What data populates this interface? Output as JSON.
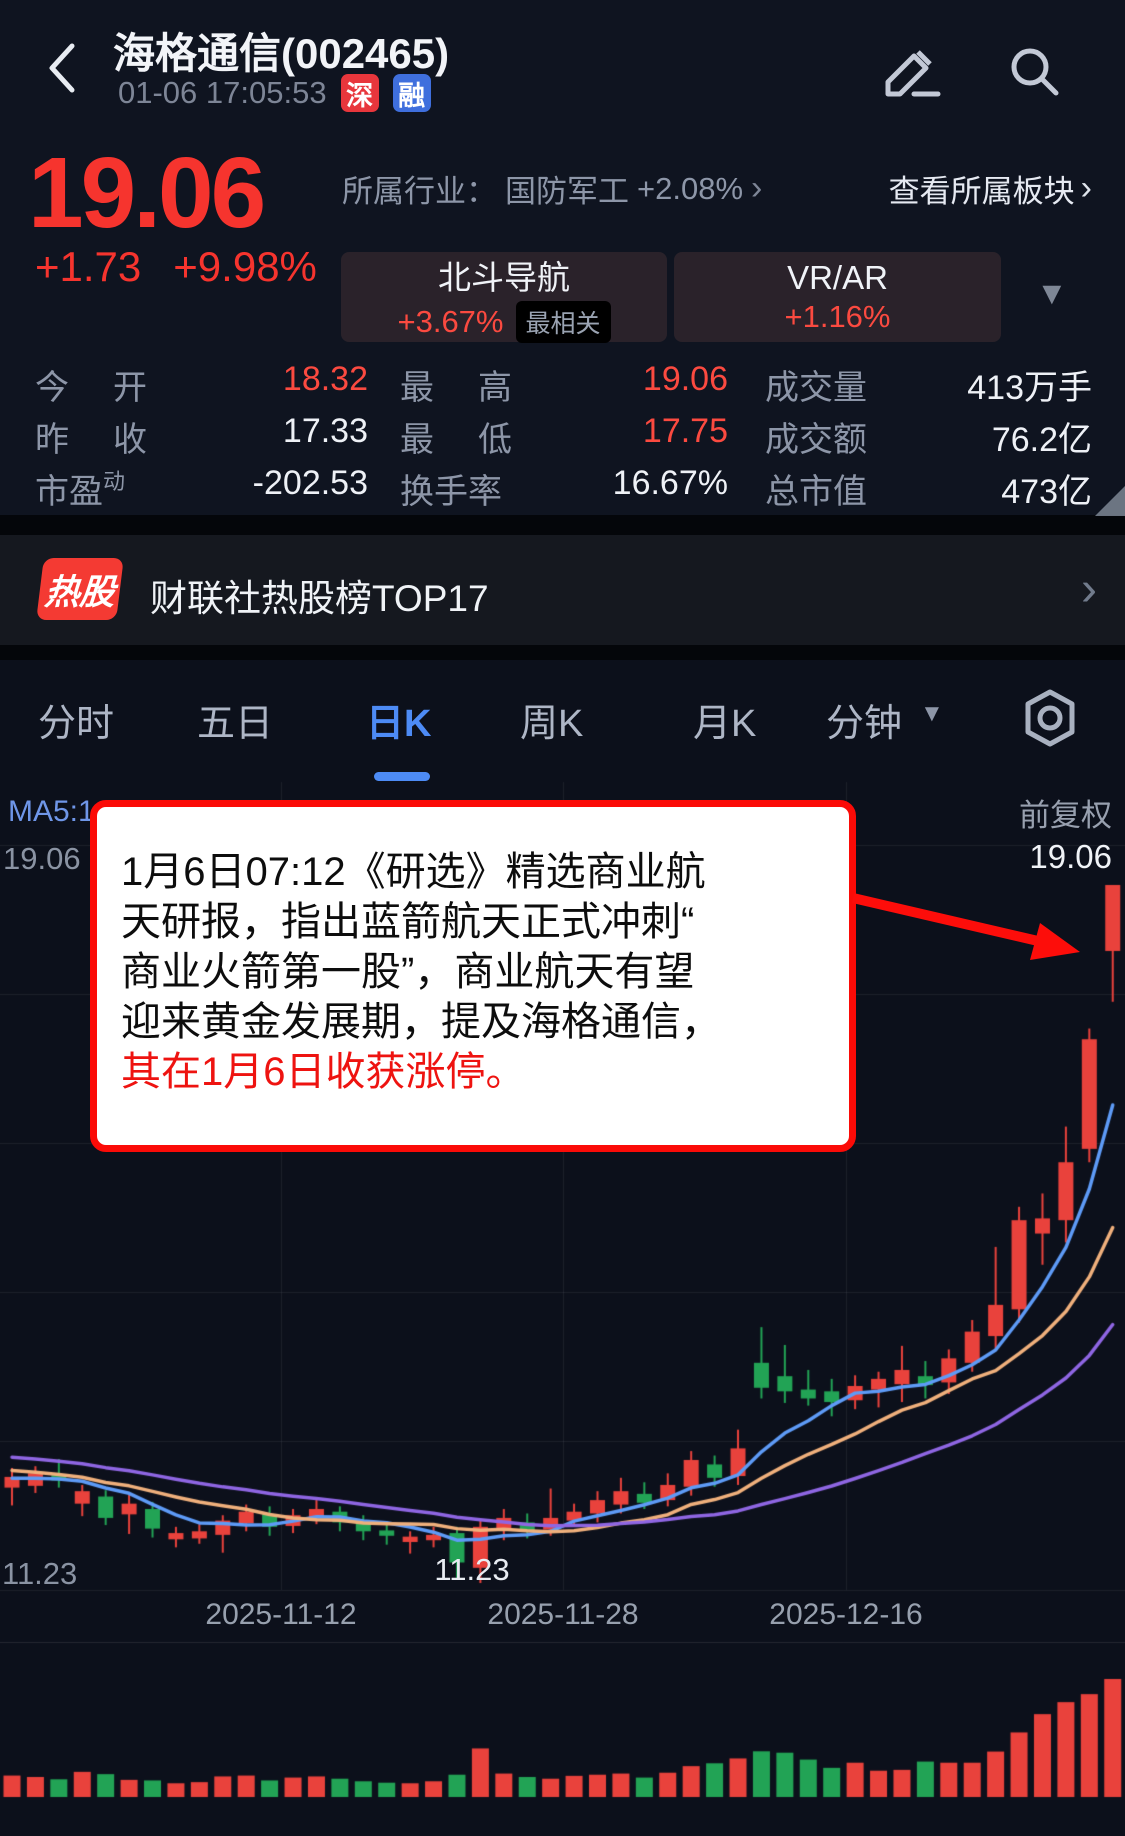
{
  "icons": {
    "chevron_right": "›",
    "dropdown_caret": "▼"
  },
  "header": {
    "title": "海格通信(002465)",
    "timestamp": "01-06 17:05:53",
    "market_badge": "深",
    "margin_badge": "融"
  },
  "quote": {
    "price": "19.06",
    "change": "+1.73",
    "change_pct": "+9.98%",
    "industry_prefix": "所属行业：",
    "industry_name": "国防军工",
    "industry_change": "+2.08%",
    "view_sector": "查看所属板块",
    "sectors": [
      {
        "name": "北斗导航",
        "change": "+3.67%",
        "tag": "最相关"
      },
      {
        "name": "VR/AR",
        "change": "+1.16%"
      }
    ]
  },
  "stats": {
    "cells": [
      {
        "label": "今开",
        "value": "18.32",
        "color": "red"
      },
      {
        "label": "最高",
        "value": "19.06",
        "color": "red"
      },
      {
        "label": "成交量",
        "value": "413万手",
        "color": "white"
      },
      {
        "label": "昨收",
        "value": "17.33",
        "color": "white"
      },
      {
        "label": "最低",
        "value": "17.75",
        "color": "red"
      },
      {
        "label": "成交额",
        "value": "76.2亿",
        "color": "white"
      },
      {
        "label": "市盈",
        "sup": "动",
        "value": "-202.53",
        "color": "white"
      },
      {
        "label": "换手率",
        "value": "16.67%",
        "color": "white"
      },
      {
        "label": "总市值",
        "value": "473亿",
        "color": "white"
      }
    ]
  },
  "hot_banner": {
    "badge": "热股",
    "text": "财联社热股榜TOP17"
  },
  "tabs": {
    "items": [
      "分时",
      "五日",
      "日K",
      "周K",
      "月K",
      "分钟"
    ],
    "active": "日K"
  },
  "chart_labels": {
    "adjust": "前复权",
    "ma_partial": "MA5:1",
    "left_max": "19.06",
    "right_max": "19.06",
    "left_min": "11.23",
    "low_marker": "11.23"
  },
  "annotation": {
    "lines": [
      "1月6日07:12《研选》精选商业航",
      "天研报，指出蓝箭航天正式冲刺“",
      "商业火箭第一股”，商业航天有望",
      "迎来黄金发展期，提及海格通信，"
    ],
    "highlight": "其在1月6日收获涨停。"
  },
  "chart_data": {
    "type": "candlestick",
    "title": "海格通信 日K 前复权",
    "x_axis_dates": [
      "2025-11-12",
      "2025-11-28",
      "2025-12-16"
    ],
    "ylim": [
      11.23,
      19.06
    ],
    "price_labels": {
      "max": "19.06",
      "min": "11.23"
    },
    "volume_unit": "万手",
    "last_volume": 413,
    "colors": {
      "up": "#e9423c",
      "down": "#22a355"
    },
    "ma_lines": [
      {
        "name": "MA5",
        "window": 5,
        "color": "#5e9bf7"
      },
      {
        "name": "MA10",
        "window": 10,
        "color": "#f0b07c"
      },
      {
        "name": "MA20",
        "window": 20,
        "color": "#8f66e3"
      }
    ],
    "ma_history_closes": [
      12.9,
      12.88,
      12.86,
      12.84,
      12.82,
      12.8,
      12.78,
      12.76,
      12.74,
      12.72,
      12.7,
      12.66,
      12.62,
      12.58,
      12.54,
      12.5,
      12.46,
      12.42,
      12.38,
      12.34
    ],
    "candles": [
      [
        12.3,
        12.52,
        12.1,
        12.42,
        75
      ],
      [
        12.32,
        12.54,
        12.24,
        12.46,
        70
      ],
      [
        12.44,
        12.62,
        12.3,
        12.38,
        62
      ],
      [
        12.12,
        12.33,
        11.98,
        12.26,
        88
      ],
      [
        12.2,
        12.27,
        11.88,
        11.96,
        80
      ],
      [
        12.0,
        12.22,
        11.78,
        12.12,
        60
      ],
      [
        12.06,
        12.14,
        11.74,
        11.84,
        58
      ],
      [
        11.72,
        11.86,
        11.63,
        11.79,
        48
      ],
      [
        11.73,
        11.89,
        11.67,
        11.81,
        52
      ],
      [
        11.77,
        11.99,
        11.57,
        11.93,
        72
      ],
      [
        11.9,
        12.11,
        11.81,
        12.03,
        75
      ],
      [
        12.0,
        12.09,
        11.76,
        11.86,
        58
      ],
      [
        11.87,
        12.06,
        11.79,
        11.99,
        68
      ],
      [
        11.96,
        12.16,
        11.89,
        12.06,
        72
      ],
      [
        12.03,
        12.09,
        11.81,
        11.91,
        64
      ],
      [
        11.93,
        11.99,
        11.71,
        11.81,
        55
      ],
      [
        11.82,
        11.91,
        11.66,
        11.76,
        50
      ],
      [
        11.69,
        11.81,
        11.56,
        11.75,
        48
      ],
      [
        11.71,
        11.86,
        11.63,
        11.77,
        55
      ],
      [
        11.79,
        11.86,
        11.28,
        11.46,
        78
      ],
      [
        11.4,
        11.94,
        11.23,
        11.86,
        170
      ],
      [
        11.82,
        12.06,
        11.71,
        11.96,
        82
      ],
      [
        11.91,
        12.01,
        11.73,
        11.81,
        70
      ],
      [
        11.83,
        12.29,
        11.76,
        11.96,
        64
      ],
      [
        11.93,
        12.12,
        11.86,
        12.03,
        74
      ],
      [
        12.01,
        12.26,
        11.91,
        12.16,
        78
      ],
      [
        12.11,
        12.41,
        12.01,
        12.26,
        82
      ],
      [
        12.23,
        12.36,
        12.06,
        12.13,
        68
      ],
      [
        12.16,
        12.46,
        12.09,
        12.33,
        85
      ],
      [
        12.31,
        12.71,
        12.21,
        12.61,
        108
      ],
      [
        12.56,
        12.66,
        12.31,
        12.41,
        118
      ],
      [
        12.43,
        12.95,
        12.33,
        12.74,
        135
      ],
      [
        13.7,
        14.1,
        13.3,
        13.42,
        160
      ],
      [
        13.55,
        13.9,
        13.25,
        13.38,
        155
      ],
      [
        13.4,
        13.62,
        13.22,
        13.3,
        131
      ],
      [
        13.38,
        13.52,
        13.1,
        13.26,
        102
      ],
      [
        13.28,
        13.56,
        13.18,
        13.44,
        120
      ],
      [
        13.4,
        13.6,
        13.2,
        13.52,
        92
      ],
      [
        13.46,
        13.89,
        13.26,
        13.62,
        95
      ],
      [
        13.55,
        13.72,
        13.3,
        13.45,
        124
      ],
      [
        13.48,
        13.85,
        13.35,
        13.75,
        120
      ],
      [
        13.7,
        14.18,
        13.6,
        14.05,
        120
      ],
      [
        14.0,
        15.0,
        13.85,
        14.35,
        159
      ],
      [
        14.3,
        15.45,
        14.15,
        15.3,
        226
      ],
      [
        15.15,
        15.6,
        14.8,
        15.32,
        290
      ],
      [
        15.3,
        16.35,
        15.05,
        15.95,
        332
      ],
      [
        16.1,
        17.45,
        15.95,
        17.33,
        360
      ],
      [
        18.32,
        19.06,
        17.75,
        19.06,
        413
      ]
    ]
  }
}
